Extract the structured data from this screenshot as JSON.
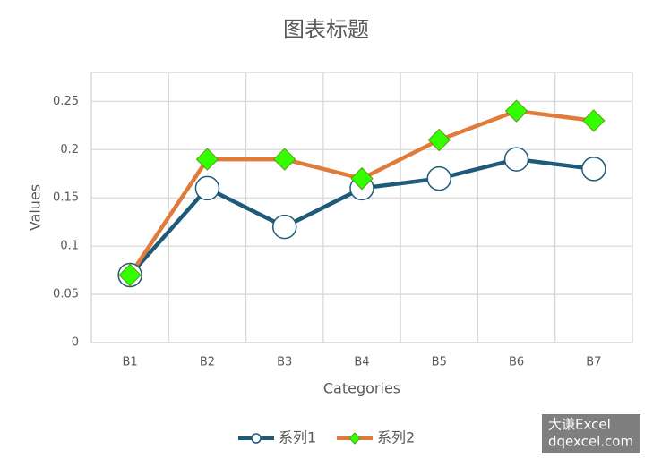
{
  "chart_data": {
    "type": "line",
    "title": "图表标题",
    "x_label": "Categories",
    "y_label": "Values",
    "categories": [
      "B1",
      "B2",
      "B3",
      "B4",
      "B5",
      "B6",
      "B7"
    ],
    "series": [
      {
        "name": "系列1",
        "color": "#1f5a78",
        "marker": "circle",
        "marker_color": "#ffffff",
        "values": [
          0.07,
          0.16,
          0.12,
          0.16,
          0.17,
          0.19,
          0.18
        ]
      },
      {
        "name": "系列2",
        "color": "#e07b39",
        "marker": "diamond",
        "marker_color": "#33ff00",
        "values": [
          0.07,
          0.19,
          0.19,
          0.17,
          0.21,
          0.24,
          0.23
        ]
      }
    ],
    "ylim": [
      0,
      0.28
    ],
    "yticks": [
      0,
      0.05,
      0.1,
      0.15,
      0.2,
      0.25
    ],
    "grid": true,
    "legend": "bottom"
  },
  "watermark": [
    "大谦Excel",
    "dqexcel.com"
  ]
}
